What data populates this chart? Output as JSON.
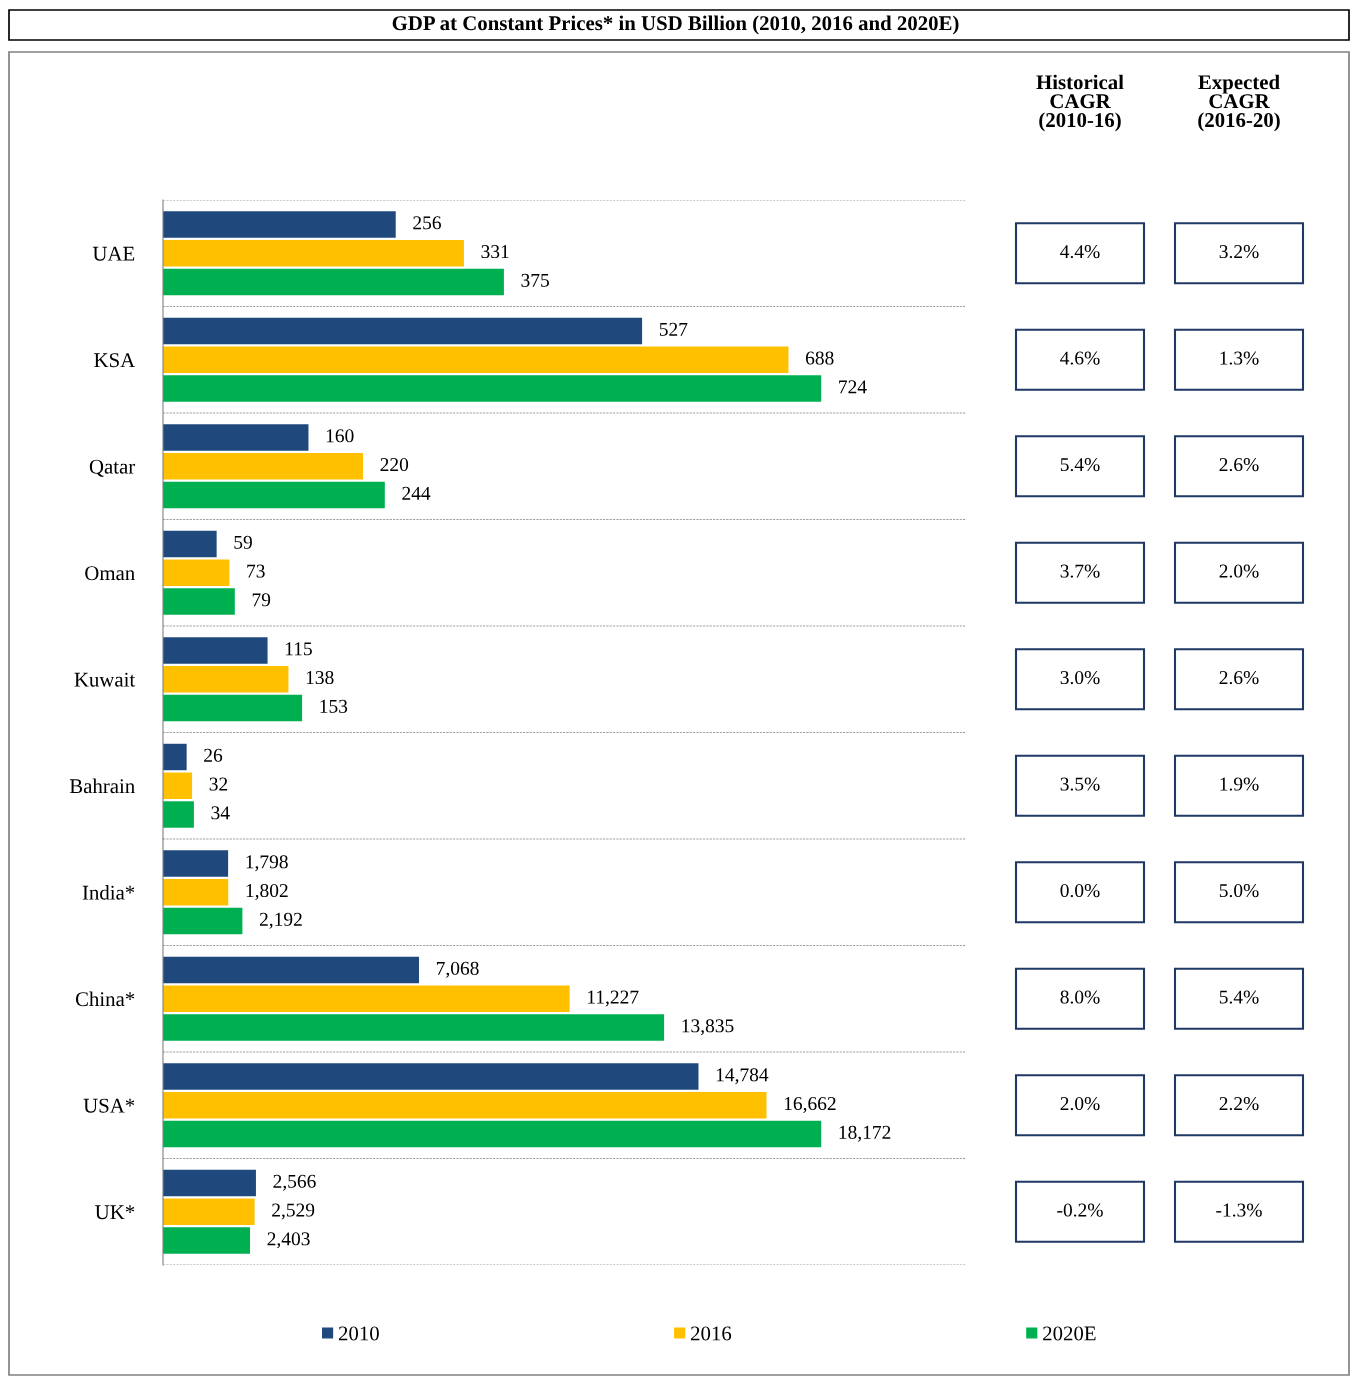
{
  "chart_data": [
    {
      "type": "bar",
      "orientation": "horizontal",
      "title": "GDP at Constant Prices* in USD Billion (2010, 2016 and 2020E)",
      "categories": [
        "UAE",
        "KSA",
        "Qatar",
        "Oman",
        "Kuwait",
        "Bahrain"
      ],
      "series": [
        {
          "color": "#1f497d",
          "values": [
            256,
            527,
            160,
            59,
            115,
            26
          ]
        },
        {
          "color": "#ffc000",
          "values": [
            331,
            688,
            220,
            73,
            138,
            32
          ]
        },
        {
          "color": "#00b050",
          "values": [
            375,
            724,
            244,
            79,
            153,
            34
          ]
        }
      ],
      "data_labels": true,
      "grid": "y",
      "tick_labels": "y"
    },
    {
      "type": "bar",
      "orientation": "horizontal",
      "categories": [
        "India*",
        "China*",
        "USA*",
        "UK*"
      ],
      "series": [
        {
          "name": "2010",
          "color": "#1f497d",
          "values": [
            1798,
            7068,
            14784,
            2566
          ],
          "value_labels": [
            "1,798",
            "7,068",
            "14,784",
            "2,566"
          ]
        },
        {
          "name": "2016",
          "color": "#ffc000",
          "values": [
            1802,
            11227,
            16662,
            2529
          ],
          "value_labels": [
            "1,802",
            "11,227",
            "16,662",
            "2,529"
          ]
        },
        {
          "name": "2020E",
          "color": "#00b050",
          "values": [
            2192,
            13835,
            18172,
            2403
          ],
          "value_labels": [
            "2,192",
            "13,835",
            "18,172",
            "2,403"
          ]
        }
      ],
      "grid": "y",
      "tick_labels": "y",
      "legend": "bottom"
    },
    {
      "type": "other",
      "annotations": [
        "Historical\nCAGR\n(2010-16)",
        "Expected\nCAGR\n(2016-20)",
        "4.4%",
        "3.2%",
        "4.6%",
        "1.3%",
        "5.4%",
        "2.6%",
        "3.7%",
        "2.0%",
        "3.0%",
        "2.6%",
        "3.5%",
        "1.9%",
        "0.0%",
        "5.0%",
        "8.0%",
        "5.4%",
        "2.0%",
        "2.2%",
        "-0.2%",
        "-1.3%"
      ]
    }
  ]
}
